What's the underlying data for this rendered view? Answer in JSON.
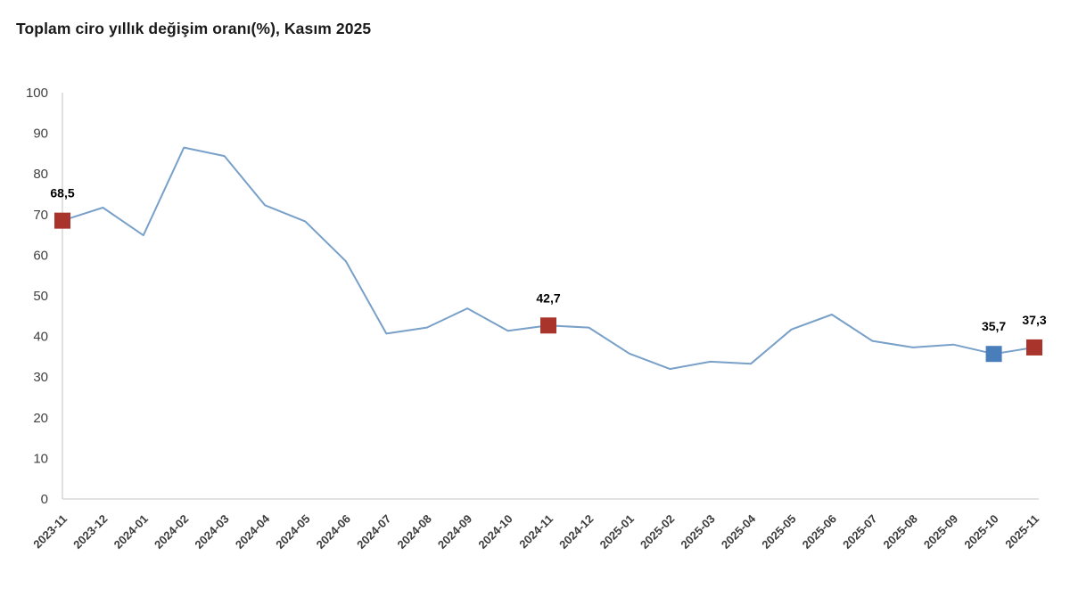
{
  "chart_data": {
    "type": "line",
    "title": "Toplam ciro yıllık değişim oranı(%), Kasım 2025",
    "xlabel": "",
    "ylabel": "",
    "ylim": [
      0,
      100
    ],
    "ytick_step": 10,
    "grid": false,
    "legend_position": "none",
    "categories": [
      "2023-11",
      "2023-12",
      "2024-01",
      "2024-02",
      "2024-03",
      "2024-04",
      "2024-05",
      "2024-06",
      "2024-07",
      "2024-08",
      "2024-09",
      "2024-10",
      "2024-11",
      "2024-12",
      "2025-01",
      "2025-02",
      "2025-03",
      "2025-04",
      "2025-05",
      "2025-06",
      "2025-07",
      "2025-08",
      "2025-09",
      "2025-10",
      "2025-11"
    ],
    "values": [
      68.5,
      71.7,
      64.9,
      86.5,
      84.4,
      72.3,
      68.3,
      58.5,
      40.7,
      42.2,
      46.9,
      41.4,
      42.7,
      42.2,
      35.8,
      32.0,
      33.8,
      33.3,
      41.7,
      45.4,
      38.9,
      37.3,
      38.0,
      35.7,
      37.3
    ],
    "marked_points": [
      {
        "index": 0,
        "category": "2023-11",
        "value": 68.5,
        "label": "68,5",
        "marker_color": "#a8342c"
      },
      {
        "index": 12,
        "category": "2024-11",
        "value": 42.7,
        "label": "42,7",
        "marker_color": "#a8342c"
      },
      {
        "index": 23,
        "category": "2025-10",
        "value": 35.7,
        "label": "35,7",
        "marker_color": "#4a7ebb"
      },
      {
        "index": 24,
        "category": "2025-11",
        "value": 37.3,
        "label": "37,3",
        "marker_color": "#a8342c"
      }
    ],
    "colors": {
      "line": "#78a0c8",
      "axis": "#d0d0d0",
      "marker_red": "#a8342c",
      "marker_blue": "#4a7ebb",
      "tick_text": "#3c3c3c",
      "title_text": "#1a1a1a"
    }
  }
}
